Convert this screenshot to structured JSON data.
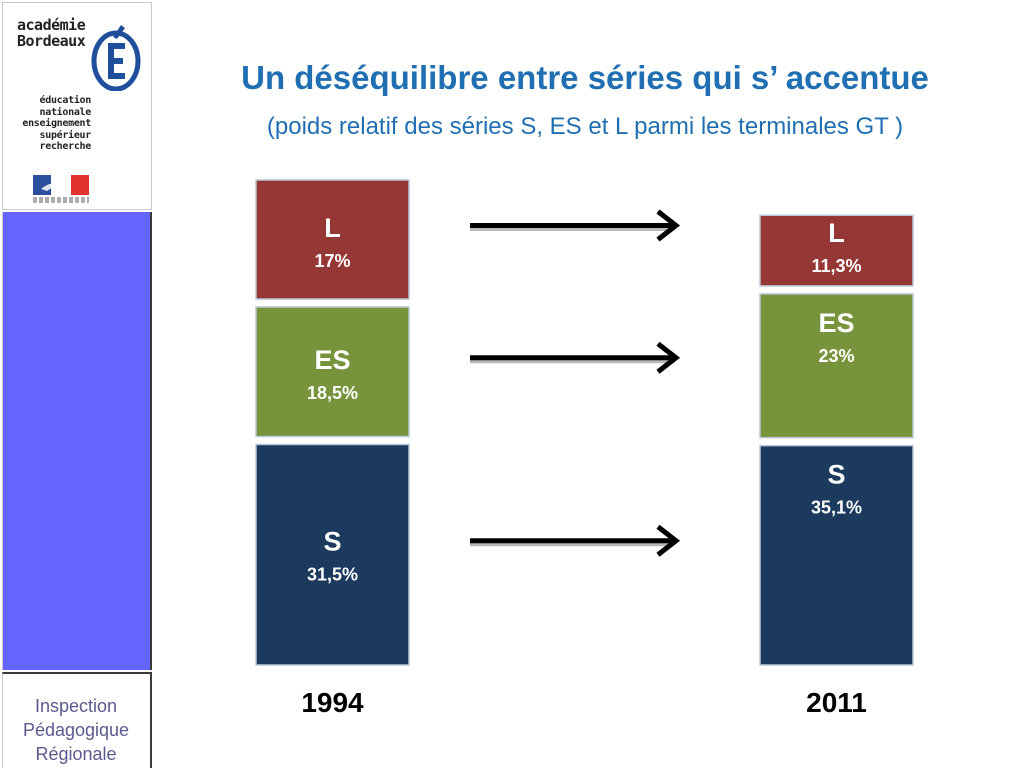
{
  "banner": {
    "logo_academie": "académie\nBordeaux",
    "logo_lines": "éducation\nnationale\nenseignement\nsupérieur\nrecherche",
    "footer_text": "Inspection\nPédagogique\nRégionale",
    "colors": {
      "blue_band": "#6464ff",
      "footer_text": "#5a5a8c"
    }
  },
  "header": {
    "title": "Un déséquilibre entre séries qui s’ accentue",
    "subtitle": "(poids relatif des séries S, ES et L parmi les terminales GT )"
  },
  "chart_data": {
    "type": "bar",
    "stacked": true,
    "categories": [
      "1994",
      "2011"
    ],
    "series": [
      {
        "name": "S",
        "values": [
          31.5,
          35.1
        ],
        "labels": [
          "31,5%",
          "35,1%"
        ],
        "color": "#1b3a5e"
      },
      {
        "name": "ES",
        "values": [
          18.5,
          23
        ],
        "labels": [
          "18,5%",
          "23%"
        ],
        "color": "#77933c"
      },
      {
        "name": "L",
        "values": [
          17,
          11.3
        ],
        "labels": [
          "17%",
          "11,3%"
        ],
        "color": "#953735"
      }
    ],
    "arrows": "between 1994 and 2011 for each series",
    "grid": false,
    "legend": "none"
  }
}
